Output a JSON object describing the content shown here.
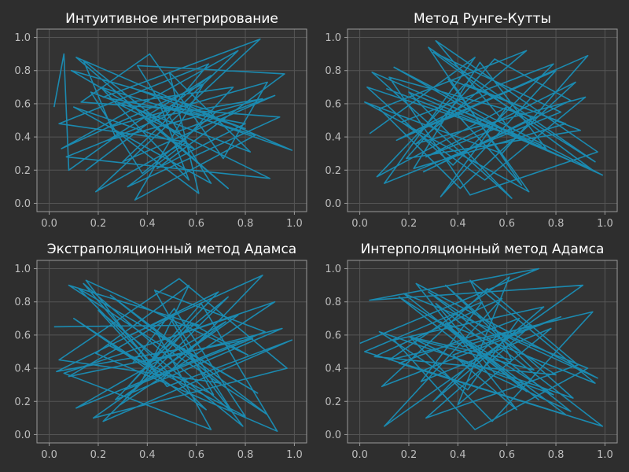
{
  "theme": {
    "background": "#2e2e2e",
    "axes_bg": "#333333",
    "spine": "#9a9a9a",
    "grid": "#555555",
    "line": "#1b8ab0",
    "text": "#ffffff",
    "tick_text": "#bdbdbd"
  },
  "chart_data": [
    {
      "type": "line",
      "title": "Интуитивное интегрирование",
      "xlim": [
        -0.05,
        1.05
      ],
      "ylim": [
        -0.05,
        1.05
      ],
      "xticks": [
        "0.0",
        "0.2",
        "0.4",
        "0.6",
        "0.8",
        "1.0"
      ],
      "yticks": [
        "0.0",
        "0.2",
        "0.4",
        "0.6",
        "0.8",
        "1.0"
      ],
      "grid": true,
      "series": [
        {
          "color": "#1b8ab0",
          "x": [
            0.02,
            0.06,
            0.08,
            0.27,
            0.14,
            0.59,
            0.1,
            0.66,
            0.36,
            0.96,
            0.44,
            0.8,
            0.22,
            0.86,
            0.19,
            0.53,
            0.75,
            0.28,
            0.9,
            0.07,
            0.47,
            0.65,
            0.04,
            0.56,
            0.32,
            0.94,
            0.13,
            0.41,
            0.71,
            0.89,
            0.25,
            0.61,
            0.49,
            0.82,
            0.17,
            0.38,
            0.68,
            0.09,
            0.52,
            0.92,
            0.3,
            0.77,
            0.05,
            0.63,
            0.35,
            0.84,
            0.21,
            0.57,
            0.45,
            0.99,
            0.11,
            0.73,
            0.39,
            0.87,
            0.24,
            0.66,
            0.15,
            0.5,
            0.8,
            0.33
          ],
          "y": [
            0.58,
            0.9,
            0.2,
            0.4,
            0.86,
            0.33,
            0.58,
            0.12,
            0.83,
            0.78,
            0.21,
            0.48,
            0.64,
            0.99,
            0.07,
            0.35,
            0.7,
            0.6,
            0.15,
            0.28,
            0.52,
            0.84,
            0.48,
            0.37,
            0.1,
            0.52,
            0.61,
            0.9,
            0.27,
            0.73,
            0.46,
            0.06,
            0.79,
            0.31,
            0.67,
            0.18,
            0.55,
            0.8,
            0.43,
            0.65,
            0.25,
            0.92,
            0.33,
            0.72,
            0.02,
            0.41,
            0.7,
            0.14,
            0.6,
            0.32,
            0.88,
            0.09,
            0.51,
            0.63,
            0.38,
            0.77,
            0.2,
            0.59,
            0.45,
            0.7
          ]
        }
      ]
    },
    {
      "type": "line",
      "title": "Метод Рунге-Кутты",
      "xlim": [
        -0.05,
        1.05
      ],
      "ylim": [
        -0.05,
        1.05
      ],
      "xticks": [
        "0.0",
        "0.2",
        "0.4",
        "0.6",
        "0.8",
        "1.0"
      ],
      "yticks": [
        "0.0",
        "0.2",
        "0.4",
        "0.6",
        "0.8",
        "1.0"
      ],
      "grid": true,
      "series": [
        {
          "color": "#1b8ab0",
          "x": [
            0.04,
            0.47,
            0.1,
            0.82,
            0.3,
            0.95,
            0.2,
            0.62,
            0.05,
            0.74,
            0.35,
            0.99,
            0.14,
            0.57,
            0.27,
            0.88,
            0.41,
            0.08,
            0.68,
            0.23,
            0.92,
            0.51,
            0.17,
            0.79,
            0.38,
            0.03,
            0.64,
            0.31,
            0.97,
            0.45,
            0.12,
            0.71,
            0.26,
            0.86,
            0.55,
            0.19,
            0.9,
            0.43,
            0.07,
            0.6,
            0.33,
            0.8,
            0.15,
            0.52,
            0.96,
            0.28,
            0.66,
            0.4,
            0.11,
            0.76,
            0.49,
            0.22,
            0.84,
            0.36,
            0.69,
            0.02,
            0.58,
            0.93,
            0.25,
            0.45
          ],
          "y": [
            0.42,
            0.88,
            0.12,
            0.55,
            0.91,
            0.2,
            0.67,
            0.03,
            0.79,
            0.35,
            0.6,
            0.17,
            0.82,
            0.46,
            0.28,
            0.73,
            0.09,
            0.57,
            0.92,
            0.36,
            0.64,
            0.14,
            0.49,
            0.84,
            0.23,
            0.7,
            0.4,
            0.98,
            0.31,
            0.05,
            0.76,
            0.52,
            0.19,
            0.62,
            0.87,
            0.27,
            0.44,
            0.72,
            0.16,
            0.58,
            0.04,
            0.8,
            0.38,
            0.66,
            0.25,
            0.94,
            0.11,
            0.53,
            0.69,
            0.33,
            0.85,
            0.21,
            0.48,
            0.75,
            0.07,
            0.61,
            0.3,
            0.89,
            0.45,
            0.56
          ]
        }
      ]
    },
    {
      "type": "line",
      "title": "Экстраполяционный метод Адамса",
      "xlim": [
        -0.05,
        1.05
      ],
      "ylim": [
        -0.05,
        1.05
      ],
      "xticks": [
        "0.0",
        "0.2",
        "0.4",
        "0.6",
        "0.8",
        "1.0"
      ],
      "yticks": [
        "0.0",
        "0.2",
        "0.4",
        "0.6",
        "0.8",
        "1.0"
      ],
      "grid": true,
      "series": [
        {
          "color": "#1b8ab0",
          "x": [
            0.02,
            0.61,
            0.08,
            0.89,
            0.25,
            0.7,
            0.04,
            0.53,
            0.97,
            0.18,
            0.77,
            0.36,
            0.12,
            0.85,
            0.44,
            0.66,
            0.06,
            0.92,
            0.29,
            0.58,
            0.81,
            0.15,
            0.48,
            0.99,
            0.22,
            0.73,
            0.39,
            0.1,
            0.64,
            0.33,
            0.87,
            0.46,
            0.2,
            0.79,
            0.55,
            0.03,
            0.69,
            0.27,
            0.95,
            0.41,
            0.14,
            0.75,
            0.5,
            0.08,
            0.83,
            0.31,
            0.62,
            0.93,
            0.19,
            0.57,
            0.37,
            0.72,
            0.11,
            0.88,
            0.43,
            0.67,
            0.24,
            0.8,
            0.51,
            0.34
          ],
          "y": [
            0.65,
            0.66,
            0.9,
            0.12,
            0.84,
            0.31,
            0.45,
            0.94,
            0.4,
            0.1,
            0.72,
            0.52,
            0.88,
            0.25,
            0.61,
            0.03,
            0.37,
            0.8,
            0.18,
            0.67,
            0.48,
            0.93,
            0.29,
            0.57,
            0.08,
            0.83,
            0.42,
            0.7,
            0.15,
            0.6,
            0.96,
            0.33,
            0.75,
            0.05,
            0.52,
            0.38,
            0.86,
            0.21,
            0.64,
            0.44,
            0.91,
            0.13,
            0.71,
            0.35,
            0.58,
            0.27,
            0.79,
            0.02,
            0.49,
            0.9,
            0.3,
            0.68,
            0.16,
            0.62,
            0.87,
            0.24,
            0.54,
            0.11,
            0.76,
            0.43
          ]
        }
      ]
    },
    {
      "type": "line",
      "title": "Интерполяционный метод Адамса",
      "xlim": [
        -0.05,
        1.05
      ],
      "ylim": [
        -0.05,
        1.05
      ],
      "xticks": [
        "0.0",
        "0.2",
        "0.4",
        "0.6",
        "0.8",
        "1.0"
      ],
      "yticks": [
        "0.0",
        "0.2",
        "0.4",
        "0.6",
        "0.8",
        "1.0"
      ],
      "grid": true,
      "series": [
        {
          "color": "#1b8ab0",
          "x": [
            0.0,
            0.73,
            0.04,
            0.91,
            0.1,
            0.58,
            0.06,
            0.8,
            0.28,
            0.99,
            0.16,
            0.65,
            0.44,
            0.08,
            0.87,
            0.35,
            0.71,
            0.21,
            0.54,
            0.95,
            0.12,
            0.61,
            0.4,
            0.78,
            0.25,
            0.5,
            0.02,
            0.84,
            0.33,
            0.68,
            0.18,
            0.93,
            0.47,
            0.14,
            0.75,
            0.3,
            0.57,
            0.97,
            0.23,
            0.64,
            0.38,
            0.82,
            0.09,
            0.52,
            0.89,
            0.27,
            0.7,
            0.42,
            0.16,
            0.79,
            0.55,
            0.31,
            0.86,
            0.2,
            0.62,
            0.45,
            0.96,
            0.35,
            0.73,
            0.5
          ],
          "y": [
            0.55,
            1.0,
            0.81,
            0.9,
            0.05,
            0.82,
            0.47,
            0.36,
            0.86,
            0.05,
            0.43,
            0.7,
            0.27,
            0.62,
            0.22,
            0.9,
            0.39,
            0.58,
            0.08,
            0.74,
            0.45,
            0.95,
            0.18,
            0.64,
            0.32,
            0.8,
            0.5,
            0.12,
            0.68,
            0.26,
            0.85,
            0.4,
            0.03,
            0.57,
            0.77,
            0.2,
            0.61,
            0.34,
            0.91,
            0.15,
            0.48,
            0.71,
            0.29,
            0.88,
            0.42,
            0.1,
            0.66,
            0.53,
            0.83,
            0.24,
            0.37,
            0.79,
            0.14,
            0.59,
            0.45,
            0.93,
            0.31,
            0.67,
            0.21,
            0.49
          ]
        }
      ]
    }
  ]
}
